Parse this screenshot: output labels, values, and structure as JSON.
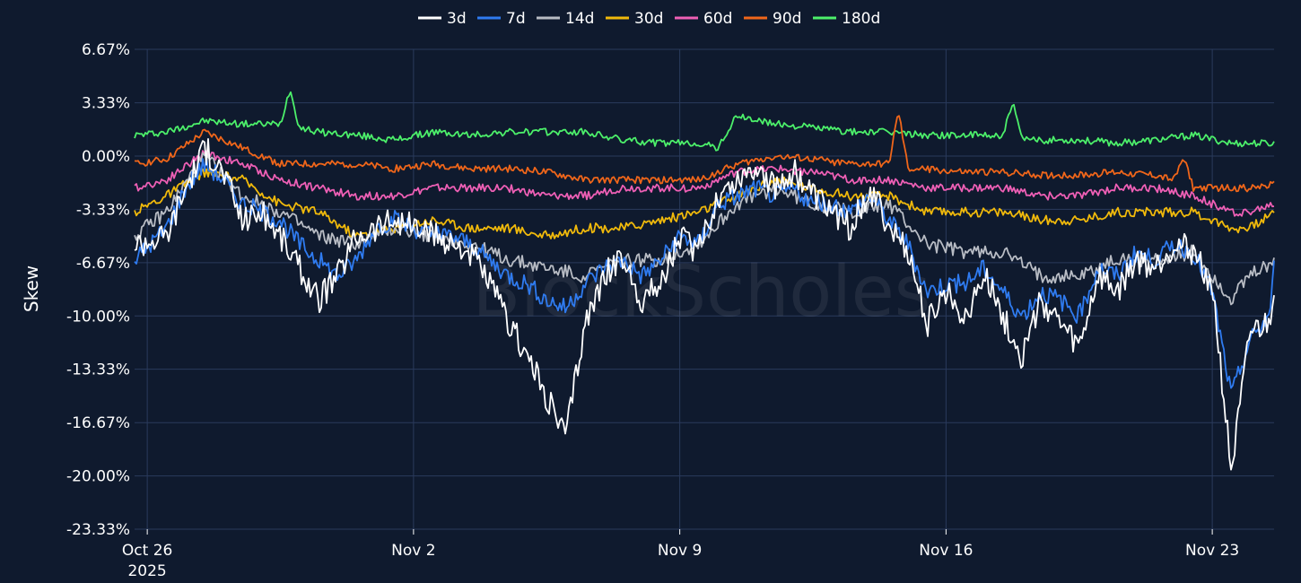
{
  "watermark": "BlockScholes",
  "chart_data": {
    "type": "line",
    "title": "",
    "xlabel": "",
    "ylabel": "Skew",
    "x_range": [
      "2025-10-25T16:00",
      "2025-11-24T15:00"
    ],
    "ylim": [
      -23.33,
      6.67
    ],
    "y_ticks": [
      6.67,
      3.33,
      0.0,
      -3.33,
      -6.67,
      -10.0,
      -13.33,
      -16.67,
      -20.0,
      -23.33
    ],
    "y_tick_labels": [
      "6.67%",
      "3.33%",
      "0.00%",
      "-3.33%",
      "-6.67%",
      "-10.00%",
      "-13.33%",
      "-16.67%",
      "-20.00%",
      "-23.33%"
    ],
    "x_ticks": [
      "2025-10-26",
      "2025-11-02",
      "2025-11-09",
      "2025-11-16",
      "2025-11-23"
    ],
    "x_tick_labels": [
      "Oct 26",
      "Nov 2",
      "Nov 9",
      "Nov 16",
      "Nov 23"
    ],
    "x_tick_year": "2025",
    "grid": true,
    "legend_position": "top-center",
    "series": [
      {
        "name": "3d",
        "color": "#ffffff",
        "x": [
          "2025-10-25T16:00",
          "2025-10-26T12:00",
          "2025-10-27T00:00",
          "2025-10-27T12:00",
          "2025-10-28T00:00",
          "2025-10-28T12:00",
          "2025-10-29T00:00",
          "2025-10-29T12:00",
          "2025-10-30T00:00",
          "2025-10-30T12:00",
          "2025-10-31T00:00",
          "2025-10-31T12:00",
          "2025-11-01T00:00",
          "2025-11-01T12:00",
          "2025-11-02T00:00",
          "2025-11-02T12:00",
          "2025-11-03T00:00",
          "2025-11-03T12:00",
          "2025-11-04T00:00",
          "2025-11-04T12:00",
          "2025-11-05T00:00",
          "2025-11-05T12:00",
          "2025-11-06T00:00",
          "2025-11-06T12:00",
          "2025-11-07T00:00",
          "2025-11-07T12:00",
          "2025-11-08T00:00",
          "2025-11-08T12:00",
          "2025-11-09T00:00",
          "2025-11-09T12:00",
          "2025-11-10T00:00",
          "2025-11-10T12:00",
          "2025-11-11T00:00",
          "2025-11-11T12:00",
          "2025-11-12T00:00",
          "2025-11-12T12:00",
          "2025-11-13T00:00",
          "2025-11-13T12:00",
          "2025-11-14T00:00",
          "2025-11-14T12:00",
          "2025-11-15T00:00",
          "2025-11-15T12:00",
          "2025-11-16T00:00",
          "2025-11-16T12:00",
          "2025-11-17T00:00",
          "2025-11-17T12:00",
          "2025-11-18T00:00",
          "2025-11-18T12:00",
          "2025-11-19T00:00",
          "2025-11-19T12:00",
          "2025-11-20T00:00",
          "2025-11-20T12:00",
          "2025-11-21T00:00",
          "2025-11-21T12:00",
          "2025-11-22T00:00",
          "2025-11-22T12:00",
          "2025-11-23T00:00",
          "2025-11-23T12:00",
          "2025-11-24T00:00",
          "2025-11-24T12:00",
          "2025-11-24T15:00"
        ],
        "values": [
          -5.5,
          -5.0,
          -2.0,
          0.5,
          -1.0,
          -4.0,
          -3.5,
          -5.0,
          -7.0,
          -9.0,
          -7.5,
          -5.0,
          -4.5,
          -4.0,
          -4.5,
          -5.0,
          -5.5,
          -6.0,
          -8.0,
          -10.5,
          -12.5,
          -15.0,
          -17.5,
          -10.5,
          -7.5,
          -6.5,
          -9.0,
          -8.0,
          -5.0,
          -6.0,
          -2.5,
          -1.5,
          -0.5,
          -2.0,
          -1.0,
          -2.5,
          -3.5,
          -4.5,
          -2.0,
          -4.5,
          -6.0,
          -10.5,
          -8.5,
          -10.0,
          -7.5,
          -10.0,
          -12.5,
          -9.0,
          -10.5,
          -12.0,
          -7.5,
          -8.5,
          -6.5,
          -7.0,
          -5.5,
          -6.0,
          -8.0,
          -19.8,
          -11.0,
          -10.5,
          -8.0
        ]
      },
      {
        "name": "7d",
        "color": "#2f7bf0",
        "x": [
          "2025-10-25T16:00",
          "2025-10-26T12:00",
          "2025-10-27T00:00",
          "2025-10-27T12:00",
          "2025-10-28T00:00",
          "2025-10-28T12:00",
          "2025-10-29T00:00",
          "2025-10-29T12:00",
          "2025-10-30T00:00",
          "2025-10-30T12:00",
          "2025-10-31T00:00",
          "2025-10-31T12:00",
          "2025-11-01T00:00",
          "2025-11-01T12:00",
          "2025-11-02T00:00",
          "2025-11-02T12:00",
          "2025-11-03T00:00",
          "2025-11-03T12:00",
          "2025-11-04T00:00",
          "2025-11-04T12:00",
          "2025-11-05T00:00",
          "2025-11-05T12:00",
          "2025-11-06T00:00",
          "2025-11-06T12:00",
          "2025-11-07T00:00",
          "2025-11-07T12:00",
          "2025-11-08T00:00",
          "2025-11-08T12:00",
          "2025-11-09T00:00",
          "2025-11-09T12:00",
          "2025-11-10T00:00",
          "2025-11-10T12:00",
          "2025-11-11T00:00",
          "2025-11-11T12:00",
          "2025-11-12T00:00",
          "2025-11-12T12:00",
          "2025-11-13T00:00",
          "2025-11-13T12:00",
          "2025-11-14T00:00",
          "2025-11-14T12:00",
          "2025-11-15T00:00",
          "2025-11-15T12:00",
          "2025-11-16T00:00",
          "2025-11-16T12:00",
          "2025-11-17T00:00",
          "2025-11-17T12:00",
          "2025-11-18T00:00",
          "2025-11-18T12:00",
          "2025-11-19T00:00",
          "2025-11-19T12:00",
          "2025-11-20T00:00",
          "2025-11-20T12:00",
          "2025-11-21T00:00",
          "2025-11-21T12:00",
          "2025-11-22T00:00",
          "2025-11-22T12:00",
          "2025-11-23T00:00",
          "2025-11-23T12:00",
          "2025-11-24T00:00",
          "2025-11-24T12:00",
          "2025-11-24T15:00"
        ],
        "values": [
          -6.5,
          -4.5,
          -2.0,
          -0.5,
          -1.5,
          -3.0,
          -3.5,
          -4.0,
          -5.5,
          -6.5,
          -7.5,
          -6.5,
          -4.5,
          -4.0,
          -4.5,
          -5.0,
          -5.0,
          -5.5,
          -6.5,
          -7.5,
          -8.0,
          -9.0,
          -9.5,
          -8.0,
          -7.0,
          -6.5,
          -7.5,
          -6.5,
          -5.0,
          -5.5,
          -3.0,
          -2.5,
          -2.0,
          -2.5,
          -2.0,
          -3.0,
          -3.0,
          -3.5,
          -2.5,
          -4.0,
          -5.5,
          -8.5,
          -8.0,
          -8.0,
          -7.0,
          -8.5,
          -10.0,
          -8.5,
          -9.0,
          -10.0,
          -7.0,
          -7.5,
          -6.0,
          -6.5,
          -5.5,
          -6.0,
          -8.5,
          -15.0,
          -11.5,
          -10.0,
          -7.0
        ]
      },
      {
        "name": "14d",
        "color": "#b8bcc4",
        "x": [
          "2025-10-25T16:00",
          "2025-10-26T12:00",
          "2025-10-27T12:00",
          "2025-10-28T12:00",
          "2025-10-29T12:00",
          "2025-10-30T12:00",
          "2025-10-31T12:00",
          "2025-11-01T12:00",
          "2025-11-02T12:00",
          "2025-11-03T12:00",
          "2025-11-04T12:00",
          "2025-11-05T12:00",
          "2025-11-06T12:00",
          "2025-11-07T12:00",
          "2025-11-08T12:00",
          "2025-11-09T12:00",
          "2025-11-10T12:00",
          "2025-11-11T12:00",
          "2025-11-12T12:00",
          "2025-11-13T12:00",
          "2025-11-14T12:00",
          "2025-11-15T12:00",
          "2025-11-16T12:00",
          "2025-11-17T12:00",
          "2025-11-18T12:00",
          "2025-11-19T12:00",
          "2025-11-20T12:00",
          "2025-11-21T12:00",
          "2025-11-22T12:00",
          "2025-11-23T12:00",
          "2025-11-24T00:00",
          "2025-11-24T15:00"
        ],
        "values": [
          -5.0,
          -3.5,
          0.0,
          -2.5,
          -3.5,
          -5.0,
          -5.5,
          -4.5,
          -5.0,
          -5.5,
          -6.5,
          -7.0,
          -7.5,
          -6.5,
          -6.5,
          -5.5,
          -3.0,
          -2.0,
          -3.0,
          -3.5,
          -3.0,
          -5.5,
          -6.0,
          -6.0,
          -7.5,
          -7.5,
          -6.5,
          -6.5,
          -6.0,
          -9.0,
          -7.5,
          -6.5
        ]
      },
      {
        "name": "30d",
        "color": "#f0b90b",
        "x": [
          "2025-10-25T16:00",
          "2025-10-26T12:00",
          "2025-10-27T12:00",
          "2025-10-28T12:00",
          "2025-10-29T12:00",
          "2025-10-30T12:00",
          "2025-10-31T12:00",
          "2025-11-01T12:00",
          "2025-11-02T12:00",
          "2025-11-03T12:00",
          "2025-11-04T12:00",
          "2025-11-05T12:00",
          "2025-11-06T12:00",
          "2025-11-07T12:00",
          "2025-11-08T12:00",
          "2025-11-09T12:00",
          "2025-11-10T12:00",
          "2025-11-11T12:00",
          "2025-11-12T12:00",
          "2025-11-13T12:00",
          "2025-11-14T12:00",
          "2025-11-15T12:00",
          "2025-11-16T12:00",
          "2025-11-17T12:00",
          "2025-11-18T12:00",
          "2025-11-19T12:00",
          "2025-11-20T12:00",
          "2025-11-21T12:00",
          "2025-11-22T12:00",
          "2025-11-23T12:00",
          "2025-11-24T00:00",
          "2025-11-24T15:00"
        ],
        "values": [
          -3.5,
          -2.5,
          -1.0,
          -1.5,
          -3.0,
          -3.5,
          -5.0,
          -4.5,
          -4.0,
          -4.5,
          -4.5,
          -5.0,
          -4.5,
          -4.5,
          -4.0,
          -3.5,
          -2.5,
          -1.5,
          -2.0,
          -2.5,
          -2.5,
          -3.5,
          -3.5,
          -3.5,
          -4.0,
          -4.0,
          -3.5,
          -3.5,
          -3.5,
          -4.5,
          -4.5,
          -3.5
        ]
      },
      {
        "name": "60d",
        "color": "#ee5fb5",
        "x": [
          "2025-10-25T16:00",
          "2025-10-26T12:00",
          "2025-10-27T12:00",
          "2025-10-28T12:00",
          "2025-10-29T12:00",
          "2025-10-30T12:00",
          "2025-10-31T12:00",
          "2025-11-01T12:00",
          "2025-11-02T12:00",
          "2025-11-03T12:00",
          "2025-11-04T12:00",
          "2025-11-05T12:00",
          "2025-11-06T12:00",
          "2025-11-07T12:00",
          "2025-11-08T12:00",
          "2025-11-09T12:00",
          "2025-11-10T12:00",
          "2025-11-11T12:00",
          "2025-11-12T12:00",
          "2025-11-13T12:00",
          "2025-11-14T12:00",
          "2025-11-15T12:00",
          "2025-11-16T12:00",
          "2025-11-17T12:00",
          "2025-11-18T12:00",
          "2025-11-19T12:00",
          "2025-11-20T12:00",
          "2025-11-21T12:00",
          "2025-11-22T12:00",
          "2025-11-23T12:00",
          "2025-11-24T00:00",
          "2025-11-24T15:00"
        ],
        "values": [
          -2.0,
          -1.5,
          0.2,
          -0.5,
          -1.5,
          -2.0,
          -2.5,
          -2.5,
          -2.0,
          -2.0,
          -2.0,
          -2.5,
          -2.5,
          -2.0,
          -2.0,
          -2.0,
          -1.0,
          -0.8,
          -1.0,
          -1.5,
          -1.5,
          -2.0,
          -2.0,
          -2.0,
          -2.5,
          -2.5,
          -2.0,
          -2.0,
          -2.5,
          -3.5,
          -3.5,
          -3.0
        ]
      },
      {
        "name": "90d",
        "color": "#f0661a",
        "x": [
          "2025-10-25T16:00",
          "2025-10-26T12:00",
          "2025-10-27T12:00",
          "2025-10-28T12:00",
          "2025-10-29T12:00",
          "2025-10-30T12:00",
          "2025-10-31T12:00",
          "2025-11-01T12:00",
          "2025-11-02T12:00",
          "2025-11-03T12:00",
          "2025-11-04T12:00",
          "2025-11-05T12:00",
          "2025-11-06T12:00",
          "2025-11-07T12:00",
          "2025-11-08T12:00",
          "2025-11-09T12:00",
          "2025-11-10T12:00",
          "2025-11-11T12:00",
          "2025-11-12T12:00",
          "2025-11-13T12:00",
          "2025-11-14T12:00",
          "2025-11-14T18:00",
          "2025-11-15T00:00",
          "2025-11-15T12:00",
          "2025-11-16T12:00",
          "2025-11-17T12:00",
          "2025-11-18T12:00",
          "2025-11-19T12:00",
          "2025-11-20T12:00",
          "2025-11-21T12:00",
          "2025-11-22T00:00",
          "2025-11-22T06:00",
          "2025-11-22T12:00",
          "2025-11-23T12:00",
          "2025-11-24T00:00",
          "2025-11-24T15:00"
        ],
        "values": [
          -0.5,
          -0.2,
          1.5,
          0.5,
          -0.5,
          -0.5,
          -0.5,
          -0.8,
          -0.5,
          -0.8,
          -0.8,
          -1.0,
          -1.5,
          -1.5,
          -1.5,
          -1.5,
          -0.5,
          0.0,
          -0.2,
          -0.5,
          -0.5,
          2.8,
          -0.8,
          -0.8,
          -1.0,
          -1.0,
          -1.2,
          -1.2,
          -1.0,
          -1.2,
          -1.5,
          0.0,
          -2.0,
          -2.0,
          -2.0,
          -1.8
        ]
      },
      {
        "name": "180d",
        "color": "#4cf06a",
        "x": [
          "2025-10-25T16:00",
          "2025-10-26T12:00",
          "2025-10-27T12:00",
          "2025-10-28T12:00",
          "2025-10-29T12:00",
          "2025-10-29T18:00",
          "2025-10-30T00:00",
          "2025-10-30T12:00",
          "2025-10-31T12:00",
          "2025-11-01T12:00",
          "2025-11-02T12:00",
          "2025-11-03T12:00",
          "2025-11-04T12:00",
          "2025-11-05T12:00",
          "2025-11-06T12:00",
          "2025-11-07T12:00",
          "2025-11-08T12:00",
          "2025-11-09T12:00",
          "2025-11-10T00:00",
          "2025-11-10T12:00",
          "2025-11-11T12:00",
          "2025-11-12T12:00",
          "2025-11-13T12:00",
          "2025-11-14T12:00",
          "2025-11-15T12:00",
          "2025-11-16T12:00",
          "2025-11-17T12:00",
          "2025-11-17T18:00",
          "2025-11-18T00:00",
          "2025-11-18T12:00",
          "2025-11-19T12:00",
          "2025-11-20T12:00",
          "2025-11-21T12:00",
          "2025-11-22T12:00",
          "2025-11-23T12:00",
          "2025-11-24T00:00",
          "2025-11-24T15:00"
        ],
        "values": [
          1.3,
          1.5,
          2.2,
          2.0,
          2.0,
          4.2,
          1.8,
          1.5,
          1.3,
          1.0,
          1.5,
          1.3,
          1.5,
          1.5,
          1.5,
          1.0,
          0.8,
          0.8,
          0.5,
          2.5,
          2.0,
          1.8,
          1.5,
          1.5,
          1.3,
          1.3,
          1.3,
          3.3,
          1.0,
          1.0,
          1.0,
          0.8,
          1.0,
          1.3,
          0.8,
          0.8,
          0.8
        ]
      }
    ]
  }
}
